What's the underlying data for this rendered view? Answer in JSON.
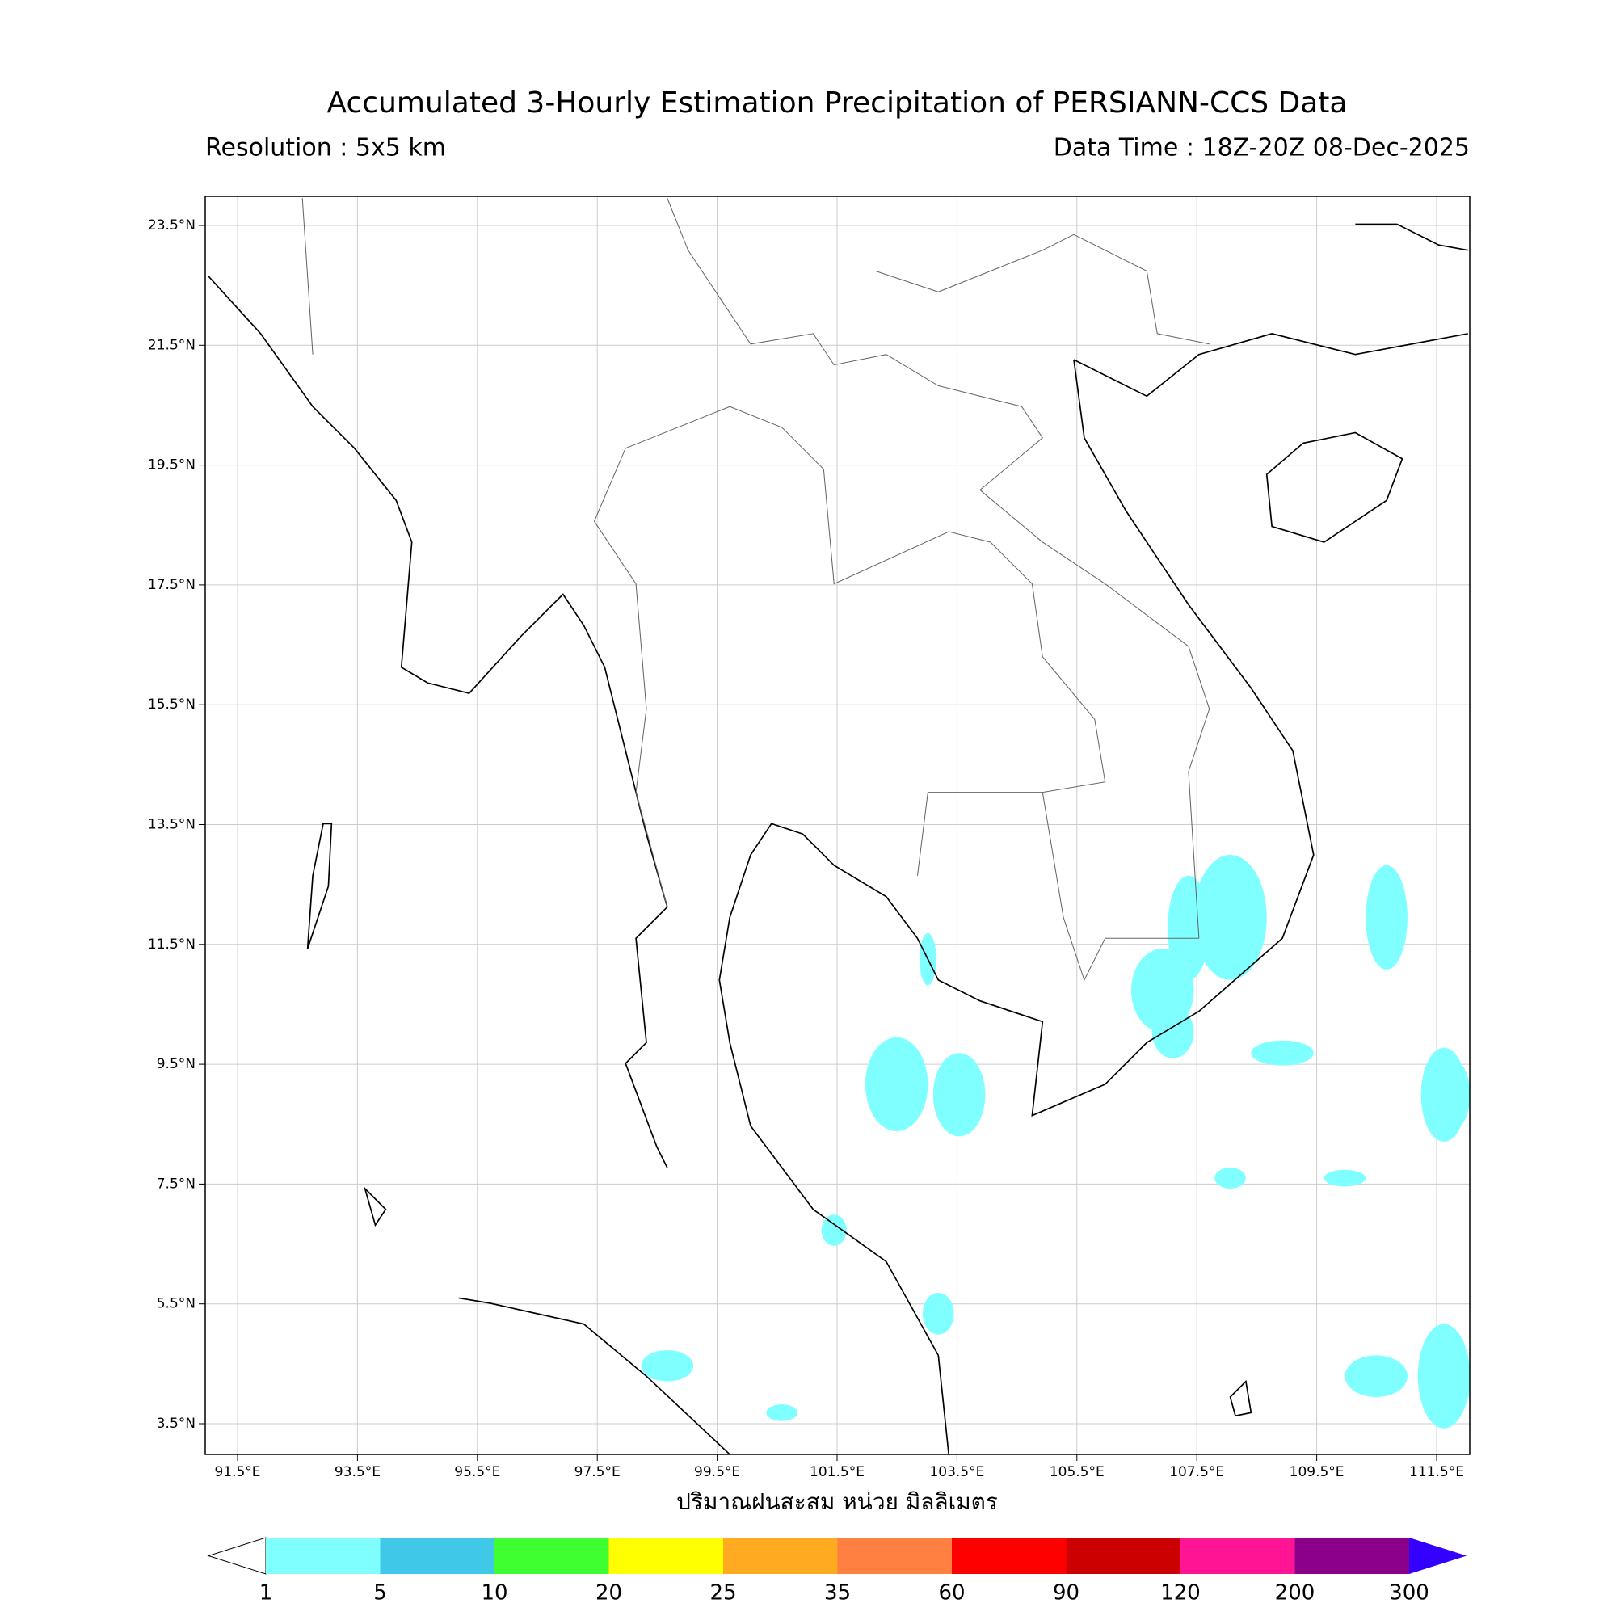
{
  "header": {
    "title": "Accumulated 3-Hourly Estimation Precipitation of PERSIANN-CCS Data",
    "resolution": "Resolution : 5x5 km",
    "data_time": "Data Time : 18Z-20Z 08-Dec-2025"
  },
  "map": {
    "lon_ticks": [
      {
        "value": 91.5,
        "label": "91.5°E"
      },
      {
        "value": 93.5,
        "label": "93.5°E"
      },
      {
        "value": 95.5,
        "label": "95.5°E"
      },
      {
        "value": 97.5,
        "label": "97.5°E"
      },
      {
        "value": 99.5,
        "label": "99.5°E"
      },
      {
        "value": 101.5,
        "label": "101.5°E"
      },
      {
        "value": 103.5,
        "label": "103.5°E"
      },
      {
        "value": 105.5,
        "label": "105.5°E"
      },
      {
        "value": 107.5,
        "label": "107.5°E"
      },
      {
        "value": 109.5,
        "label": "109.5°E"
      },
      {
        "value": 111.5,
        "label": "111.5°E"
      }
    ],
    "lat_ticks": [
      {
        "value": 23.5,
        "label": "23.5°N"
      },
      {
        "value": 21.5,
        "label": "21.5°N"
      },
      {
        "value": 19.5,
        "label": "19.5°N"
      },
      {
        "value": 17.5,
        "label": "17.5°N"
      },
      {
        "value": 15.5,
        "label": "15.5°N"
      },
      {
        "value": 13.5,
        "label": "13.5°N"
      },
      {
        "value": 11.5,
        "label": "11.5°N"
      },
      {
        "value": 9.5,
        "label": "9.5°N"
      },
      {
        "value": 7.5,
        "label": "7.5°N"
      },
      {
        "value": 5.5,
        "label": "5.5°N"
      },
      {
        "value": 3.5,
        "label": "3.5°N"
      }
    ],
    "x_label": "ปริมาณฝนสะสม หน่วย มิลลิเมตร"
  },
  "colorbar": {
    "levels": [
      1,
      5,
      10,
      20,
      25,
      35,
      60,
      90,
      120,
      200,
      300
    ],
    "colors": [
      "#ffffff",
      "#7fffff",
      "#40c8e8",
      "#40ff30",
      "#ffff00",
      "#ffaa20",
      "#ff8040",
      "#ff0000",
      "#cc0000",
      "#ff1493",
      "#8b008b",
      "#3300ff"
    ]
  }
}
